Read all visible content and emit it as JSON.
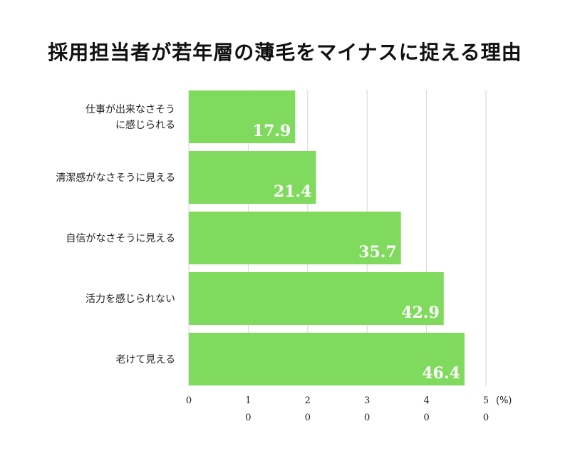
{
  "chart_data": {
    "type": "bar",
    "orientation": "horizontal",
    "title": "採用担当者が若年層の薄毛をマイナスに捉える理由",
    "categories": [
      [
        "仕事が出来なさそう",
        "に感じられる"
      ],
      [
        "清潔感がなさそうに見える"
      ],
      [
        "自信がなさそうに見える"
      ],
      [
        "活力を感じられない"
      ],
      [
        "老けて見える"
      ]
    ],
    "values": [
      17.9,
      21.4,
      35.7,
      42.9,
      46.4
    ],
    "value_labels": [
      "17.9",
      "21.4",
      "35.7",
      "42.9",
      "46.4"
    ],
    "xlim": [
      0,
      50
    ],
    "x_ticks": [
      {
        "value": 0,
        "line1": "0",
        "line2": ""
      },
      {
        "value": 10,
        "line1": "1",
        "line2": "0"
      },
      {
        "value": 20,
        "line1": "2",
        "line2": "0"
      },
      {
        "value": 30,
        "line1": "3",
        "line2": "0"
      },
      {
        "value": 40,
        "line1": "4",
        "line2": "0"
      },
      {
        "value": 50,
        "line1": "5",
        "line2": "0"
      }
    ],
    "x_unit": "(%)",
    "grid": true,
    "bar_color": "#7fda5d",
    "value_label_color": "#ffffff"
  }
}
